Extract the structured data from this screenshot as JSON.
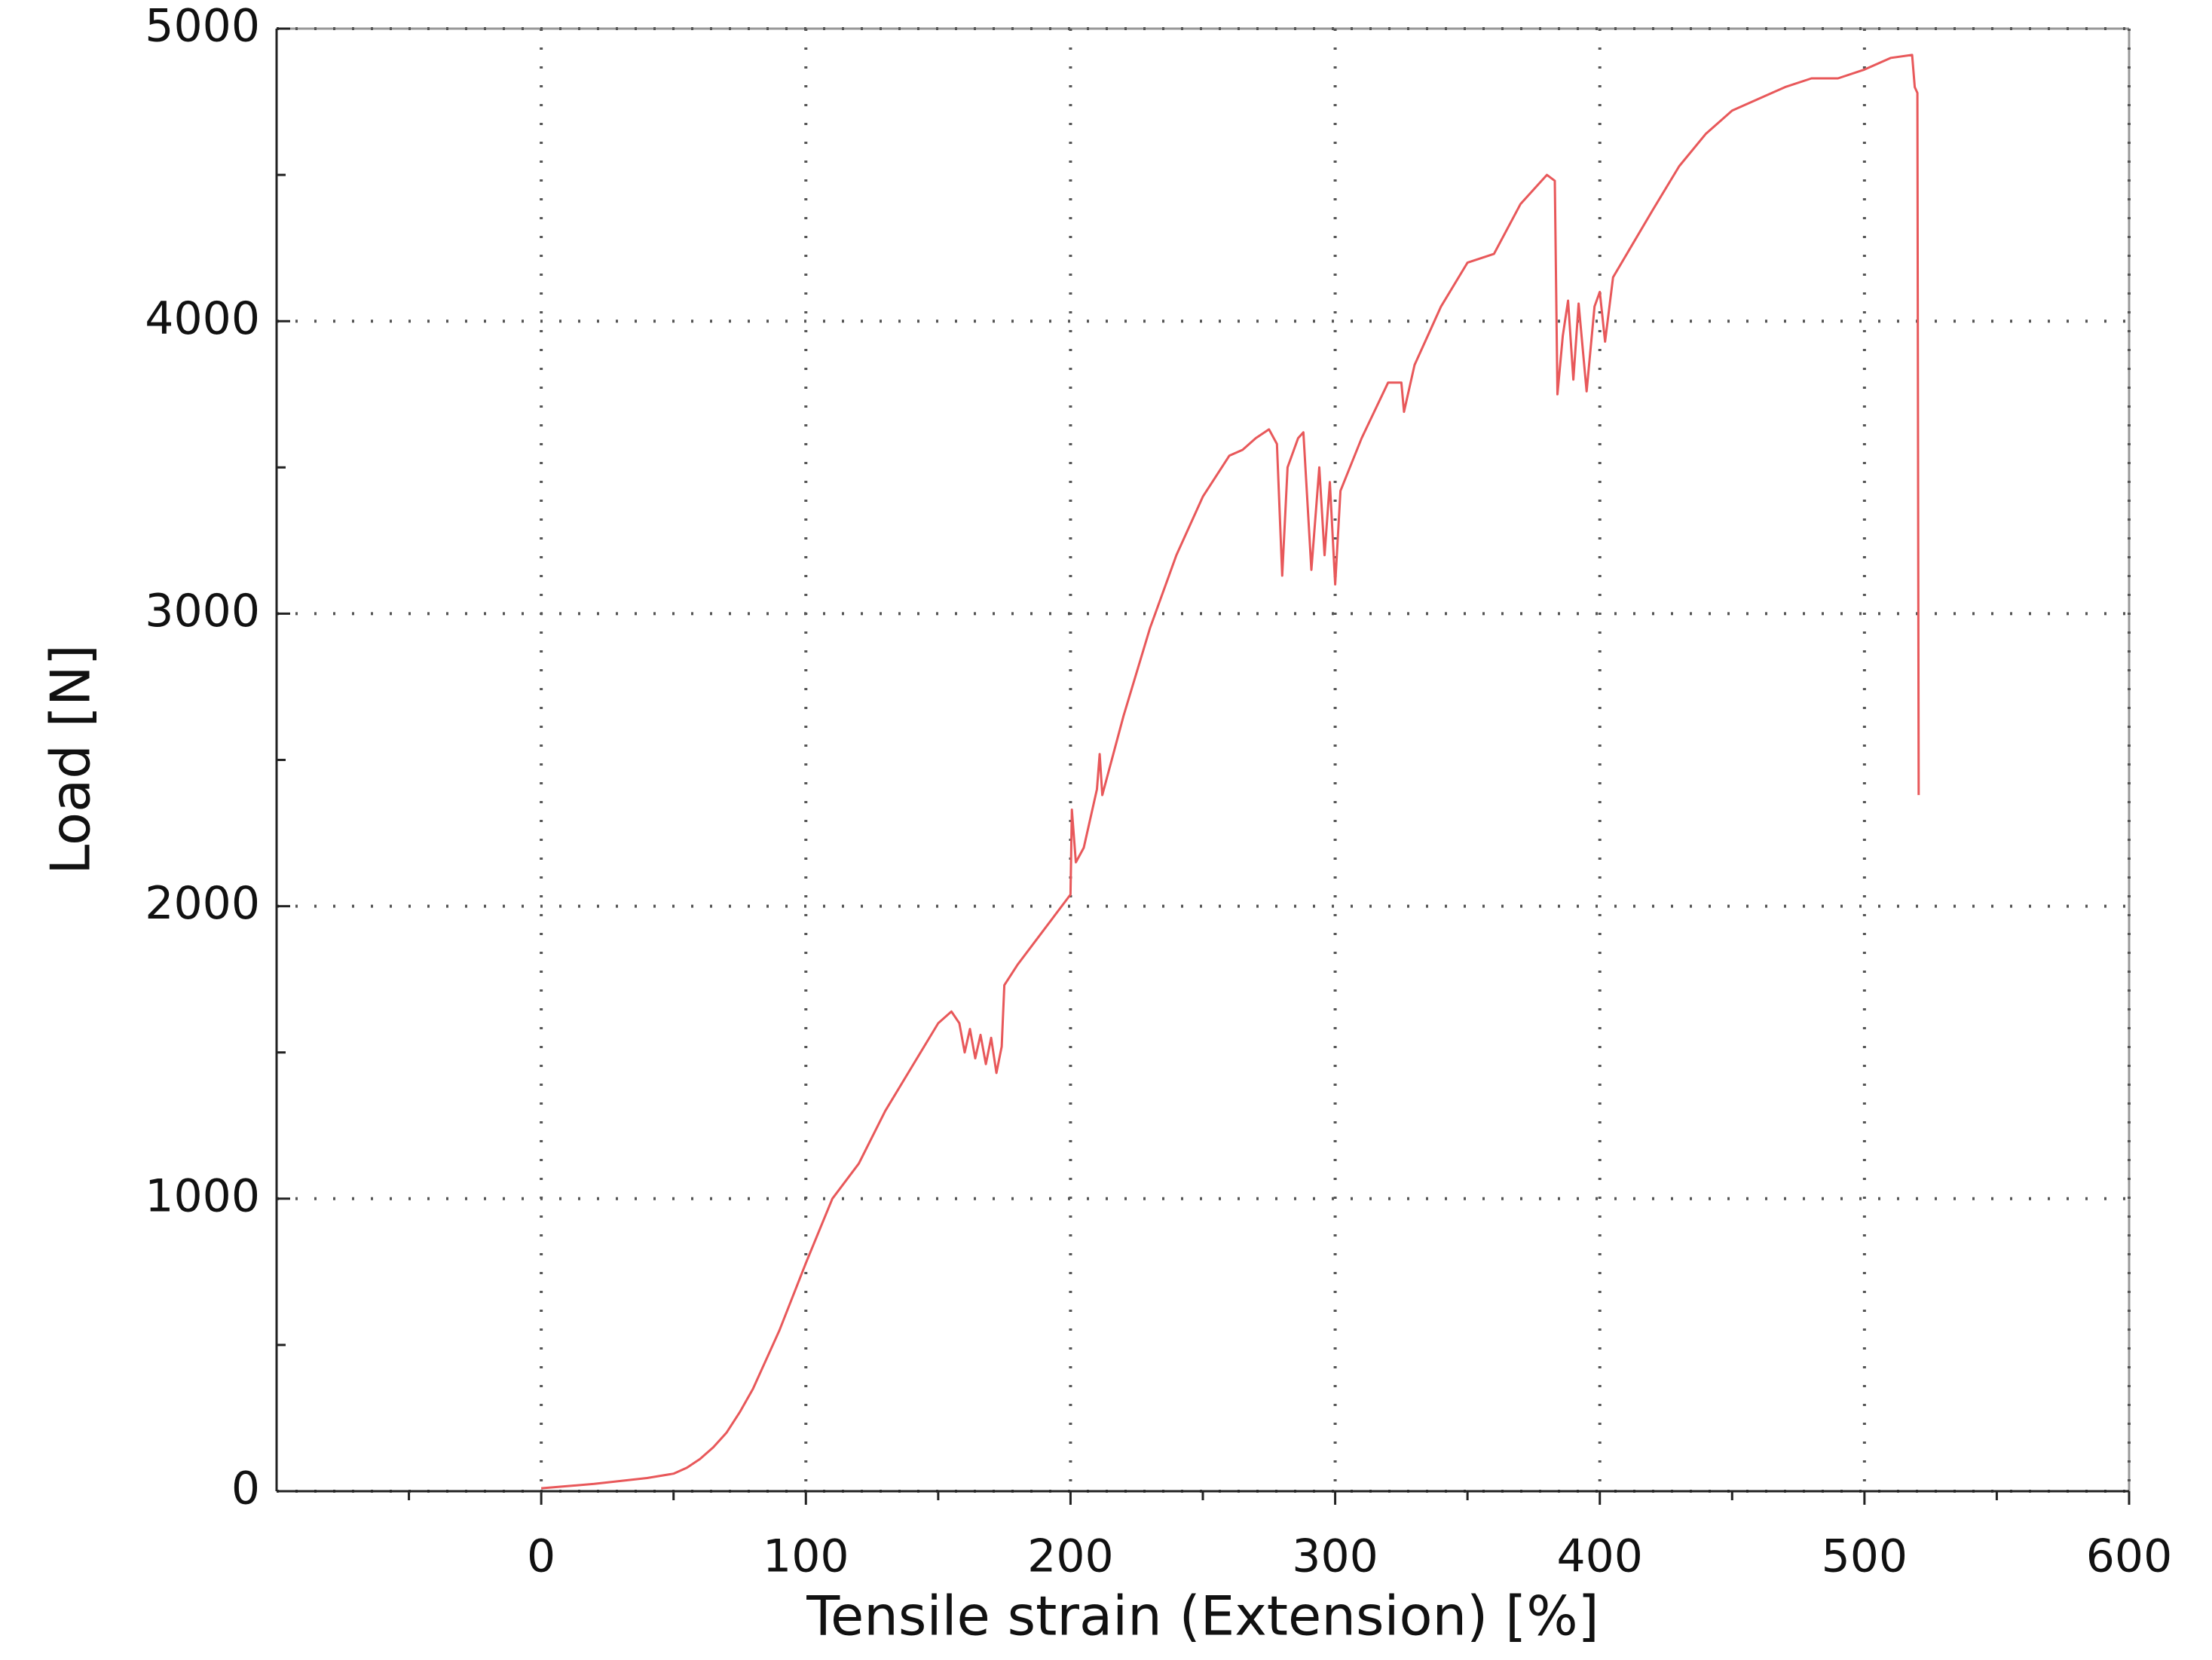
{
  "chart_data": {
    "type": "line",
    "x_label": "Tensile strain (Extension) [%]",
    "y_label": "Load [N]",
    "xlim": [
      -100,
      600
    ],
    "xticks": [
      0,
      100,
      200,
      300,
      400,
      500,
      600
    ],
    "ylim": [
      0,
      5000
    ],
    "yticks": [
      0,
      1000,
      2000,
      3000,
      4000,
      5000
    ],
    "grid": true,
    "x": [
      0,
      20,
      40,
      50,
      55,
      60,
      65,
      70,
      75,
      80,
      90,
      100,
      110,
      120,
      130,
      140,
      150,
      155,
      158,
      160,
      162,
      164,
      166,
      168,
      170,
      172,
      174,
      175,
      180,
      190,
      200,
      200.5,
      202,
      205,
      210,
      211,
      212,
      220,
      230,
      240,
      250,
      260,
      265,
      270,
      275,
      278,
      280,
      282,
      286,
      288,
      291,
      294,
      296,
      298,
      300,
      302,
      310,
      320,
      325,
      326,
      330,
      340,
      350,
      360,
      370,
      380,
      383,
      384,
      386,
      388,
      390,
      392,
      395,
      398,
      400,
      402,
      405,
      420,
      430,
      440,
      450,
      470,
      480,
      490,
      500,
      510,
      518,
      519,
      520,
      520.5
    ],
    "series": [
      {
        "name": "Load",
        "color": "#e8585a",
        "values": [
          10,
          25,
          45,
          60,
          80,
          110,
          150,
          200,
          270,
          350,
          550,
          780,
          1000,
          1120,
          1300,
          1450,
          1600,
          1640,
          1600,
          1500,
          1580,
          1480,
          1560,
          1460,
          1550,
          1430,
          1520,
          1730,
          1800,
          1920,
          2040,
          2330,
          2150,
          2200,
          2400,
          2520,
          2380,
          2650,
          2950,
          3200,
          3400,
          3540,
          3560,
          3600,
          3630,
          3580,
          3130,
          3500,
          3600,
          3620,
          3150,
          3500,
          3200,
          3450,
          3100,
          3420,
          3600,
          3790,
          3790,
          3690,
          3850,
          4050,
          4200,
          4230,
          4400,
          4500,
          4480,
          3750,
          3950,
          4070,
          3800,
          4060,
          3760,
          4050,
          4100,
          3930,
          4150,
          4380,
          4530,
          4640,
          4720,
          4800,
          4830,
          4830,
          4860,
          4900,
          4910,
          4800,
          4780,
          2380
        ]
      }
    ]
  }
}
